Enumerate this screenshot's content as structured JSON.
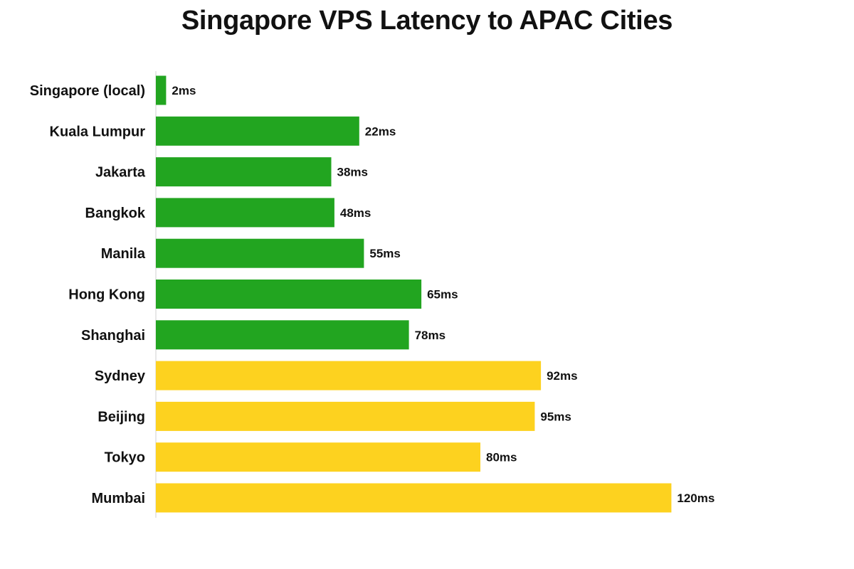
{
  "chart_data": {
    "type": "bar",
    "orientation": "horizontal",
    "title": "Singapore VPS Latency to APAC Cities",
    "xlabel": "",
    "ylabel": "",
    "grid": false,
    "legend": "none",
    "xlim": [
      0,
      165
    ],
    "categories": [
      "Singapore (local)",
      "Kuala Lumpur",
      "Jakarta",
      "Bangkok",
      "Manila",
      "Hong Kong",
      "Shanghai",
      "Sydney",
      "Beijing",
      "Tokyo",
      "Mumbai"
    ],
    "values": [
      2,
      22,
      38,
      48,
      55,
      65,
      78,
      92,
      95,
      80,
      120
    ],
    "bar_lengths": [
      3.3,
      65.5,
      56.5,
      57.5,
      67,
      85.5,
      81.5,
      124,
      122,
      104.5,
      166
    ],
    "value_labels": [
      "2ms",
      "22ms",
      "38ms",
      "48ms",
      "55ms",
      "65ms",
      "78ms",
      "92ms",
      "95ms",
      "80ms",
      "120ms"
    ],
    "colors": [
      "#22a520",
      "#22a520",
      "#22a520",
      "#22a520",
      "#22a520",
      "#22a520",
      "#22a520",
      "#fdd21f",
      "#fdd21f",
      "#fdd21f",
      "#fdd21f"
    ]
  }
}
